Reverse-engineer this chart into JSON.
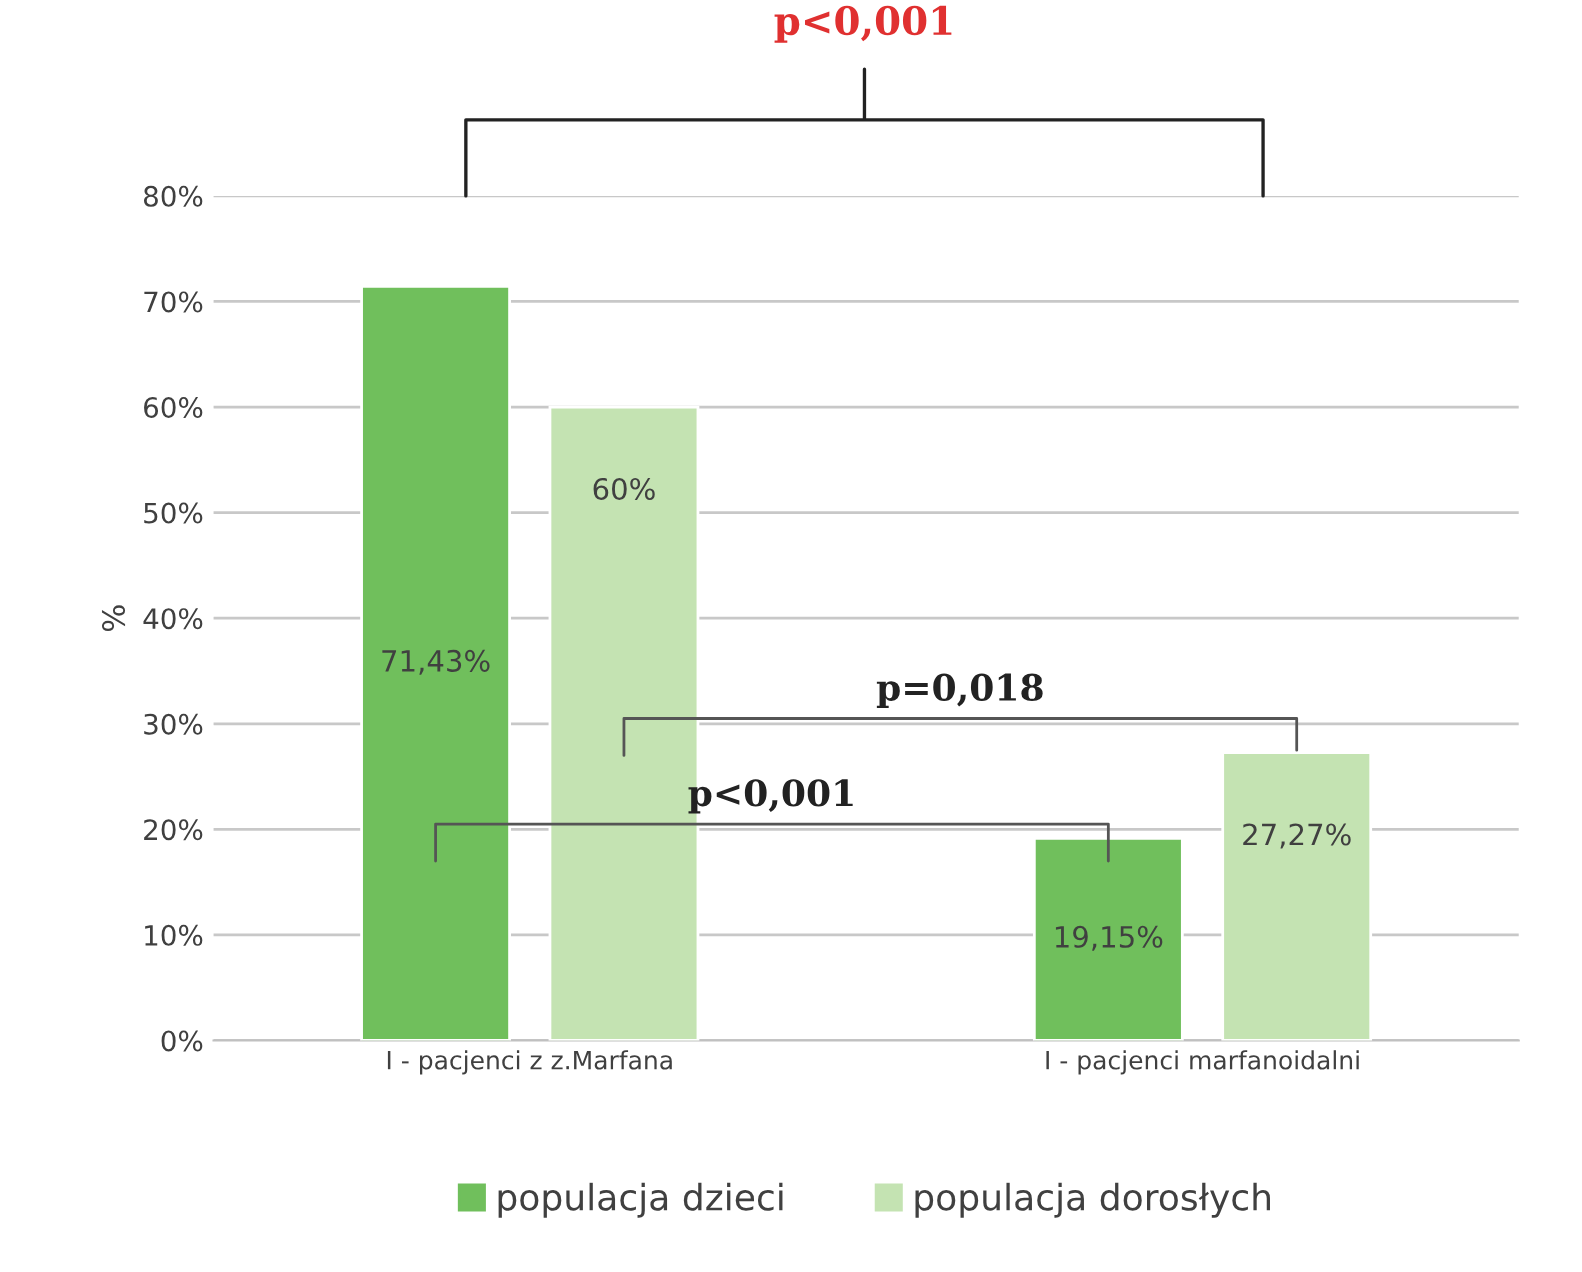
{
  "chart_data": {
    "type": "bar",
    "categories": [
      "I - pacjenci z z.Marfana",
      "I - pacjenci marfanoidalni"
    ],
    "series": [
      {
        "name": "populacja dzieci",
        "color": "#70bf5c",
        "values": [
          71.43,
          19.15
        ],
        "value_labels": [
          "71,43%",
          "19,15%"
        ]
      },
      {
        "name": "populacja dorosłych",
        "color": "#c4e3b2",
        "values": [
          60,
          27.27
        ],
        "value_labels": [
          "60%",
          "27,27%"
        ]
      }
    ],
    "ylabel": "%",
    "ylim": [
      0,
      80
    ],
    "yticks": [
      {
        "value": 0,
        "label": "0%"
      },
      {
        "value": 10,
        "label": "10%"
      },
      {
        "value": 20,
        "label": "20%"
      },
      {
        "value": 30,
        "label": "30%"
      },
      {
        "value": 40,
        "label": "40%"
      },
      {
        "value": 50,
        "label": "50%"
      },
      {
        "value": 60,
        "label": "60%"
      },
      {
        "value": 70,
        "label": "70%"
      },
      {
        "value": 80,
        "label": "80%"
      }
    ],
    "annotations": [
      "p<0,001",
      "p=0,018",
      "p<0,001"
    ],
    "grid": "y",
    "legend": "bottom"
  }
}
